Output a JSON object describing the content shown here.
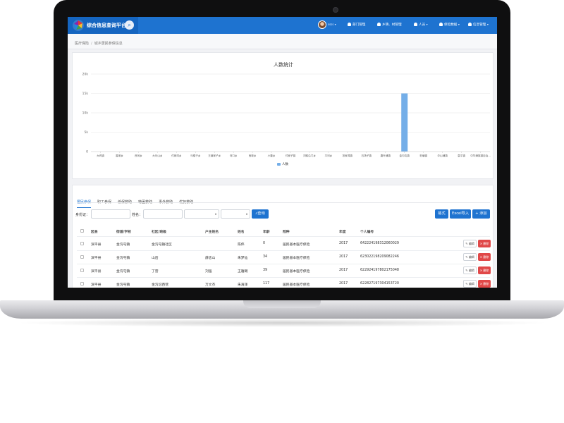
{
  "app": {
    "title": "综合信息查询平台",
    "logo_icon": "colorful-logo-icon",
    "search_icon": "search-icon"
  },
  "user": {
    "name": "ssss"
  },
  "nav": [
    {
      "label": "部门管理",
      "icon": "user-icon"
    },
    {
      "label": "乡镇、村管理",
      "icon": "user-icon"
    },
    {
      "label": "人员",
      "icon": "user-icon"
    },
    {
      "label": "保险数据",
      "icon": "user-icon"
    },
    {
      "label": "信息管理",
      "icon": "user-icon"
    }
  ],
  "breadcrumb": [
    "医疗保险",
    "城乡居民参保信息"
  ],
  "chart_data": {
    "type": "bar",
    "title": "人数统计",
    "categories": [
      "大坞镇",
      "香坡乡",
      "西河乡",
      "大乐山乡",
      "付家湾乡",
      "马楼子乡",
      "王道家子乡",
      "河口乡",
      "西坡乡",
      "小董乡",
      "付家子镇",
      "刘鸦沿门乡",
      "平河乡",
      "张家湾镇",
      "石场子镇",
      "唐叶铺镇",
      "金沟屯镇",
      "杞塘镇",
      "伞山铺镇",
      "皇平镇",
      "中华满族镇自治..."
    ],
    "series": [
      {
        "name": "人数",
        "values": [
          0,
          0,
          0,
          0,
          0,
          0,
          0,
          0,
          0,
          0,
          0,
          0,
          0,
          0,
          0,
          0,
          15000,
          0,
          0,
          0,
          0
        ]
      }
    ],
    "yticks": [
      "0",
      "5k",
      "10k",
      "15k",
      "20k"
    ],
    "ylim": [
      0,
      20000
    ],
    "grid": true,
    "legend_position": "bottom",
    "bar_color": "#74aee8"
  },
  "tabs": [
    "居民参保",
    "职工参保",
    "低保救助",
    "特困救助",
    "事外救助",
    "优抚救助"
  ],
  "filters": {
    "id_label": "身份证：",
    "name_label": "姓名：",
    "select1_value": "",
    "select2_value": "",
    "query_button": "查询",
    "format_button": "格式",
    "import_button": "Excel导入",
    "add_button": "添加"
  },
  "table": {
    "headers": [
      "区县",
      "街道/学校",
      "社区/班级",
      "户主姓名",
      "姓名",
      "年龄",
      "险种",
      "年度",
      "个人编号"
    ],
    "rows": [
      [
        "滨平县",
        "金沟屯镇",
        "金沟屯镇社区",
        "",
        "陈伟",
        "0",
        "居民基本医疗保险",
        "2017",
        "642224198312060029"
      ],
      [
        "滨平县",
        "金沟屯镇",
        "山后",
        "薛志山",
        "朱梦仙",
        "34",
        "居民基本医疗保险",
        "2017",
        "623022198209082246"
      ],
      [
        "滨平县",
        "金沟屯镇",
        "丁营",
        "刘强",
        "王雅璐",
        "39",
        "居民基本医疗保险",
        "2017",
        "622924197802175048"
      ],
      [
        "滨平县",
        "金沟屯镇",
        "金沟沿西营",
        "万文杰",
        "朱海泽",
        "117",
        "居民基本医疗保险",
        "2017",
        "622827197304153720"
      ]
    ],
    "edit_label": "编辑",
    "delete_label": "删除"
  }
}
